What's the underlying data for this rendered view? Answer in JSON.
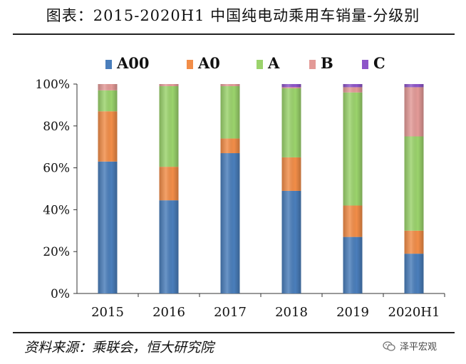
{
  "header": {
    "title": "图表：2015-2020H1 中国纯电动乘用车销量-分级别"
  },
  "footer": {
    "source": "资料来源：乘联会，恒大研究院",
    "brand": "泽平宏观"
  },
  "chart_data": {
    "type": "bar",
    "stacked": true,
    "categories": [
      "2015",
      "2016",
      "2017",
      "2018",
      "2019",
      "2020H1"
    ],
    "series": [
      {
        "name": "A00",
        "color": "#4a7ebb",
        "values": [
          63,
          44.5,
          67,
          49,
          27,
          19
        ]
      },
      {
        "name": "A0",
        "color": "#f28d48",
        "values": [
          24,
          16,
          7,
          16,
          15,
          11
        ]
      },
      {
        "name": "A",
        "color": "#9bd36c",
        "values": [
          10,
          38.5,
          25,
          33,
          54,
          45
        ]
      },
      {
        "name": "B",
        "color": "#e39a97",
        "values": [
          3,
          1,
          1,
          0.5,
          2.5,
          23.5
        ]
      },
      {
        "name": "C",
        "color": "#8d55c9",
        "values": [
          0,
          0,
          0,
          1.5,
          1.5,
          1.5
        ]
      }
    ],
    "y_tick_labels": [
      "0%",
      "20%",
      "40%",
      "60%",
      "80%",
      "100%"
    ],
    "ylim": [
      0,
      100
    ],
    "legend_position": "top",
    "grid": false
  }
}
